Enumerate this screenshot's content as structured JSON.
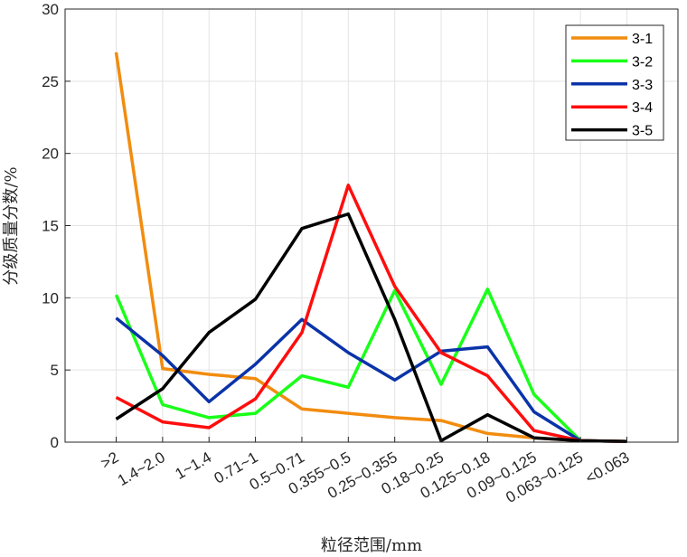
{
  "chart_data": {
    "type": "line",
    "title": "",
    "xlabel": "粒径范围/mm",
    "ylabel": "分级质量分数/%",
    "categories": [
      ">2",
      "1.4~2.0",
      "1~1.4",
      "0.71~1",
      "0.5~0.71",
      "0.355~0.5",
      "0.25~0.355",
      "0.18~0.25",
      "0.125~0.18",
      "0.09~0.125",
      "0.063~0.125",
      "<0.063"
    ],
    "ylim": [
      0,
      30
    ],
    "yticks": [
      0,
      5,
      10,
      15,
      20,
      25,
      30
    ],
    "grid": true,
    "legend_position": "top-right",
    "series": [
      {
        "name": "3-1",
        "color": "#f28c0f",
        "values": [
          27.0,
          5.1,
          4.7,
          4.4,
          2.3,
          2.0,
          1.7,
          1.5,
          0.6,
          0.3,
          0.1,
          0.05
        ]
      },
      {
        "name": "3-2",
        "color": "#19ff19",
        "values": [
          10.2,
          2.6,
          1.7,
          2.0,
          4.6,
          3.8,
          10.5,
          4.0,
          10.6,
          3.3,
          0.1,
          0.05
        ]
      },
      {
        "name": "3-3",
        "color": "#0a33a8",
        "values": [
          8.6,
          6.0,
          2.8,
          5.4,
          8.5,
          6.2,
          4.3,
          6.3,
          6.6,
          2.1,
          0.1,
          0.05
        ]
      },
      {
        "name": "3-4",
        "color": "#ff0d0d",
        "values": [
          3.1,
          1.4,
          1.0,
          3.0,
          7.6,
          17.8,
          10.8,
          6.2,
          4.6,
          0.8,
          0.1,
          0.05
        ]
      },
      {
        "name": "3-5",
        "color": "#000000",
        "values": [
          1.6,
          3.7,
          7.6,
          9.9,
          14.8,
          15.8,
          8.5,
          0.1,
          1.9,
          0.3,
          0.1,
          0.05
        ]
      }
    ]
  }
}
